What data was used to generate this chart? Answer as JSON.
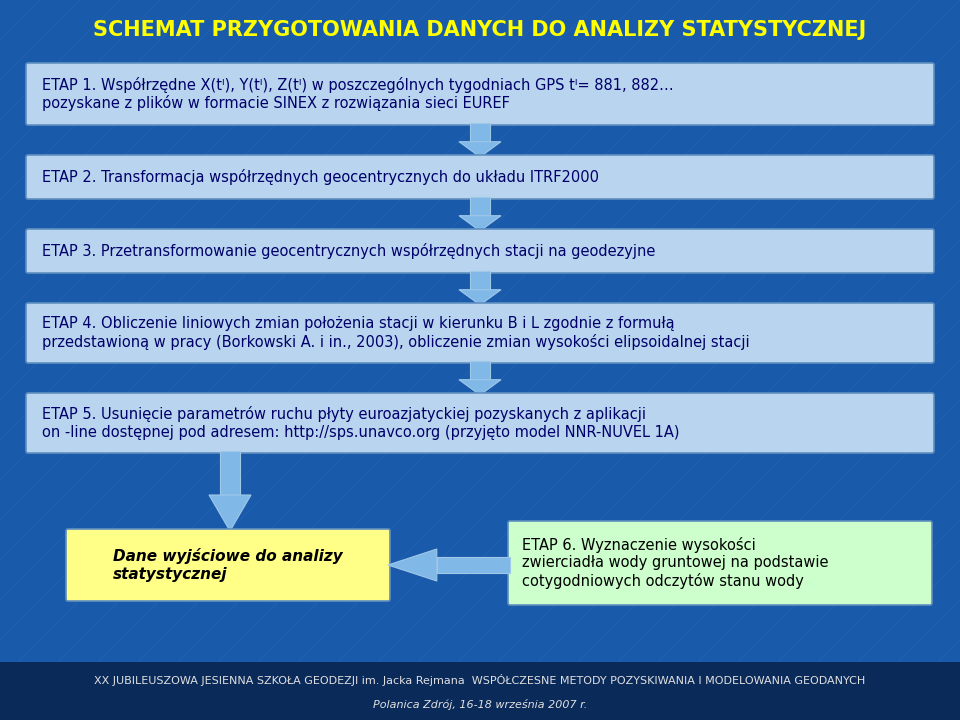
{
  "title": "SCHEMAT PRZYGOTOWANIA DANYCH DO ANALIZY STATYSTYCZNEJ",
  "bg_color": "#1a5aaa",
  "box_color": "#b8d4ee",
  "box_border": "#6090c0",
  "arrow_color": "#80b8e8",
  "title_color": "#ffff00",
  "text_color": "#00006a",
  "footer_bg": "#0a2a5a",
  "footer_text_color": "#e0e0e0",
  "yellow_box_color": "#ffff88",
  "green_box_color": "#ccffcc",
  "etap1_text": "ETAP 1. Współrzędne X(tᴵ), Y(tᴵ), Z(tᴵ) w poszczególnych tygodniach GPS tᴵ= 881, 882…\npozyskane z plików w formacie SINEX z rozwiązania sieci EUREF",
  "etap2_text": "ETAP 2. Transformacja współrzędnych geocentrycznych do układu ITRF2000",
  "etap3_text": "ETAP 3. Przetransformowanie geocentrycznych współrzędnych stacji na geodezyjne",
  "etap4_text": "ETAP 4. Obliczenie liniowych zmian położenia stacji w kierunku B i L zgodnie z formułą\nprzedstawioną w pracy (Borkowski A. i in., 2003), obliczenie zmian wysokości elipsoidalnej stacji",
  "etap5_text": "ETAP 5. Usunięcie parametrów ruchu płyty euroazjatyckiej pozyskanych z aplikacji\non -line dostępnej pod adresem: http://sps.unavco.org (przyjęto model NNR-NUVEL 1A)",
  "etap6_text": "ETAP 6. Wyznaczenie wysokości\nzwierciadła wody gruntowej na podstawie\ncotygodniowych odczytów stanu wody",
  "dane_text": "Dane wyjściowe do analizy\nstatystycznej",
  "footer1": "XX JUBILEUSZOWA JESIENNA SZKOŁA GEODEZJI im. Jacka Rejmana  WSPÓŁCZESNE METODY POZYSKIWANIA I MODELOWANIA GEODANYCH",
  "footer2": "Polanica Zdrój, 16-18 września 2007 r.",
  "fig_width": 9.6,
  "fig_height": 7.2,
  "dpi": 100
}
